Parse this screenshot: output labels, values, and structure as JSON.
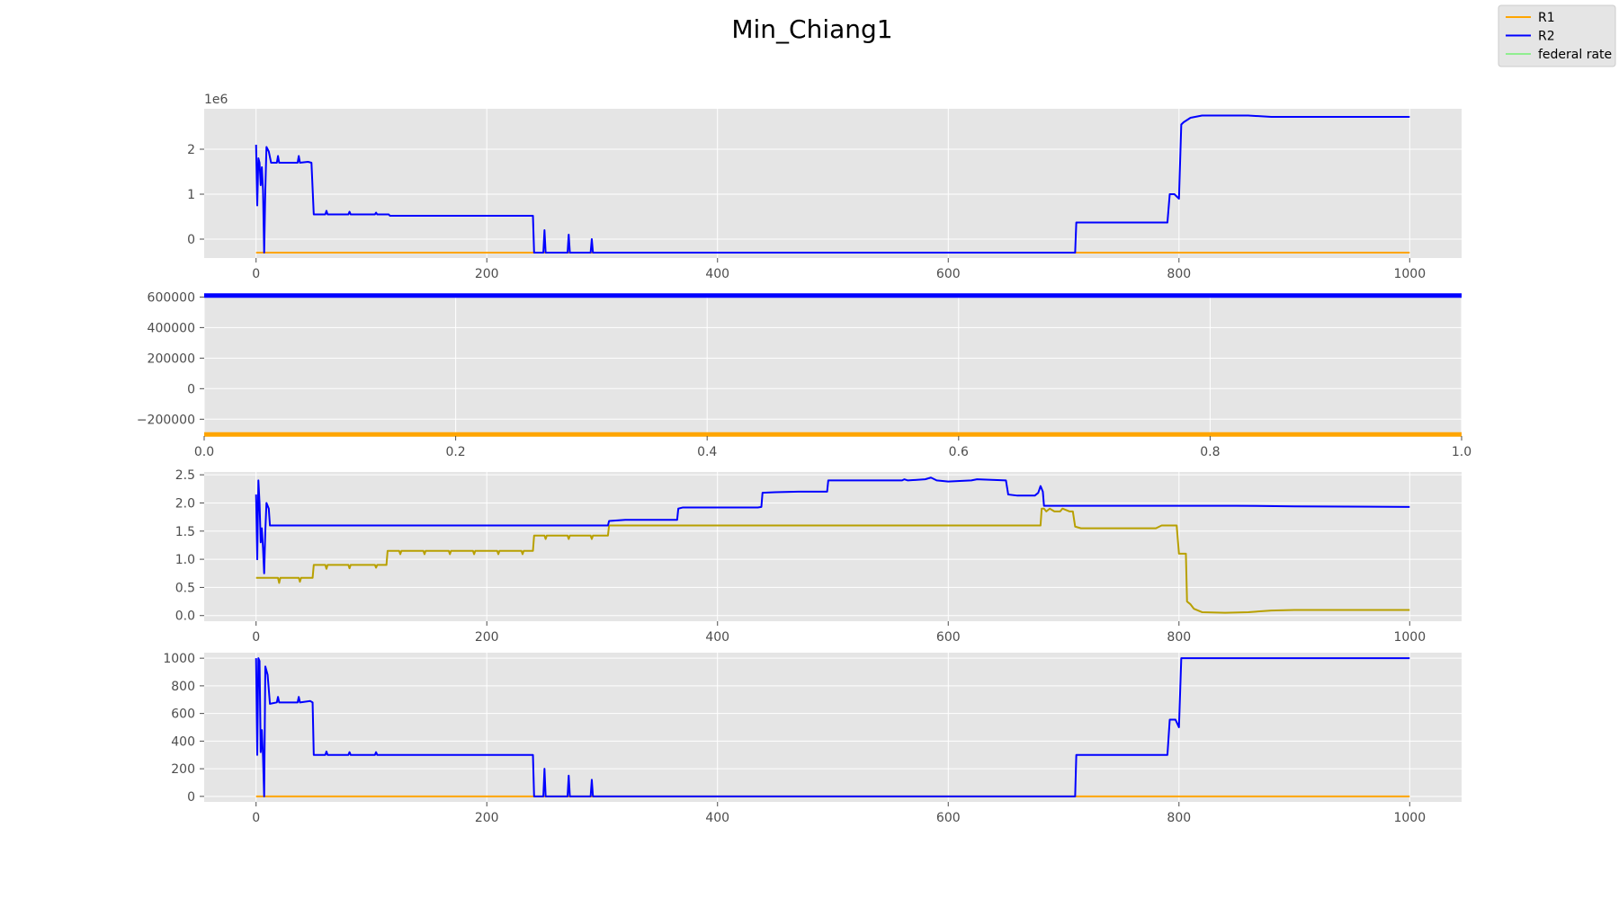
{
  "figure": {
    "title": "Min_Chiang1",
    "background": "#ffffff",
    "panel_bg": "#e5e5e5",
    "grid_color": "#ffffff"
  },
  "legend": {
    "placement": "top-right",
    "entries": [
      {
        "label": "R1",
        "color": "#ffa500"
      },
      {
        "label": "R2",
        "color": "#0000ff"
      },
      {
        "label": "federal rate",
        "color": "#90ee90"
      }
    ]
  },
  "chart_data": [
    {
      "type": "line",
      "offset_text": "1e6",
      "xlim": [
        -45,
        1045
      ],
      "ylim": [
        -0.42,
        2.9
      ],
      "xticks": [
        0,
        200,
        400,
        600,
        800,
        1000
      ],
      "xtick_labels": [
        "0",
        "200",
        "400",
        "600",
        "800",
        "1000"
      ],
      "yticks": [
        0,
        1,
        2
      ],
      "ytick_labels": [
        "0",
        "1",
        "2"
      ],
      "grid": true,
      "series": [
        {
          "name": "R1",
          "color": "#ffa500",
          "width": 2,
          "points": [
            [
              0,
              -0.3
            ],
            [
              1000,
              -0.3
            ]
          ]
        },
        {
          "name": "R2",
          "color": "#0000ff",
          "width": 2,
          "points": [
            [
              0,
              2.1
            ],
            [
              1,
              0.75
            ],
            [
              2,
              1.8
            ],
            [
              3,
              1.7
            ],
            [
              4,
              1.2
            ],
            [
              5,
              1.6
            ],
            [
              6,
              1.1
            ],
            [
              7,
              -0.3
            ],
            [
              8,
              1.1
            ],
            [
              9,
              2.05
            ],
            [
              11,
              1.95
            ],
            [
              13,
              1.7
            ],
            [
              18,
              1.7
            ],
            [
              19,
              1.85
            ],
            [
              20,
              1.7
            ],
            [
              36,
              1.7
            ],
            [
              37,
              1.85
            ],
            [
              38,
              1.7
            ],
            [
              45,
              1.72
            ],
            [
              48,
              1.7
            ],
            [
              50,
              0.55
            ],
            [
              60,
              0.55
            ],
            [
              61,
              0.63
            ],
            [
              62,
              0.55
            ],
            [
              80,
              0.55
            ],
            [
              81,
              0.61
            ],
            [
              82,
              0.55
            ],
            [
              103,
              0.55
            ],
            [
              104,
              0.59
            ],
            [
              105,
              0.55
            ],
            [
              115,
              0.55
            ],
            [
              116,
              0.52
            ],
            [
              240,
              0.52
            ],
            [
              241,
              -0.3
            ],
            [
              249,
              -0.3
            ],
            [
              250,
              0.2
            ],
            [
              251,
              -0.3
            ],
            [
              270,
              -0.3
            ],
            [
              271,
              0.1
            ],
            [
              272,
              -0.3
            ],
            [
              290,
              -0.3
            ],
            [
              291,
              0.0
            ],
            [
              292,
              -0.3
            ],
            [
              710,
              -0.3
            ],
            [
              711,
              0.37
            ],
            [
              790,
              0.37
            ],
            [
              792,
              1.0
            ],
            [
              796,
              1.0
            ],
            [
              800,
              0.9
            ],
            [
              802,
              2.55
            ],
            [
              804,
              2.6
            ],
            [
              810,
              2.7
            ],
            [
              820,
              2.75
            ],
            [
              860,
              2.75
            ],
            [
              880,
              2.72
            ],
            [
              950,
              2.72
            ],
            [
              1000,
              2.72
            ]
          ]
        }
      ]
    },
    {
      "type": "line",
      "offset_text": "",
      "xlim": [
        0,
        1
      ],
      "ylim": [
        -310000,
        620000
      ],
      "xticks": [
        0,
        0.2,
        0.4,
        0.6,
        0.8,
        1.0
      ],
      "xtick_labels": [
        "0.0",
        "0.2",
        "0.4",
        "0.6",
        "0.8",
        "1.0"
      ],
      "yticks": [
        -200000,
        0,
        200000,
        400000,
        600000
      ],
      "ytick_labels": [
        "−200000",
        "0",
        "200000",
        "400000",
        "600000"
      ],
      "grid": true,
      "series": [
        {
          "name": "R1",
          "color": "#ffa500",
          "width": 5,
          "points": [
            [
              0,
              -300000
            ],
            [
              1,
              -300000
            ]
          ]
        },
        {
          "name": "R2",
          "color": "#0000ff",
          "width": 5,
          "points": [
            [
              0,
              610000
            ],
            [
              1,
              610000
            ]
          ]
        }
      ]
    },
    {
      "type": "line",
      "offset_text": "",
      "xlim": [
        -45,
        1045
      ],
      "ylim": [
        -0.1,
        2.55
      ],
      "xticks": [
        0,
        200,
        400,
        600,
        800,
        1000
      ],
      "xtick_labels": [
        "0",
        "200",
        "400",
        "600",
        "800",
        "1000"
      ],
      "yticks": [
        0,
        0.5,
        1.0,
        1.5,
        2.0,
        2.5
      ],
      "ytick_labels": [
        "0.0",
        "0.5",
        "1.0",
        "1.5",
        "2.0",
        "2.5"
      ],
      "grid": true,
      "series": [
        {
          "name": "R1",
          "color": "#b8a000",
          "width": 2,
          "points": [
            [
              0,
              0.67
            ],
            [
              19,
              0.67
            ],
            [
              20,
              0.58
            ],
            [
              21,
              0.67
            ],
            [
              37,
              0.67
            ],
            [
              38,
              0.6
            ],
            [
              39,
              0.67
            ],
            [
              49,
              0.67
            ],
            [
              50,
              0.9
            ],
            [
              60,
              0.9
            ],
            [
              61,
              0.83
            ],
            [
              62,
              0.9
            ],
            [
              80,
              0.9
            ],
            [
              81,
              0.84
            ],
            [
              82,
              0.9
            ],
            [
              103,
              0.9
            ],
            [
              104,
              0.85
            ],
            [
              105,
              0.9
            ],
            [
              113,
              0.9
            ],
            [
              114,
              1.15
            ],
            [
              124,
              1.15
            ],
            [
              125,
              1.09
            ],
            [
              126,
              1.15
            ],
            [
              145,
              1.15
            ],
            [
              146,
              1.09
            ],
            [
              147,
              1.15
            ],
            [
              167,
              1.15
            ],
            [
              168,
              1.09
            ],
            [
              169,
              1.15
            ],
            [
              188,
              1.15
            ],
            [
              189,
              1.09
            ],
            [
              190,
              1.15
            ],
            [
              209,
              1.15
            ],
            [
              210,
              1.09
            ],
            [
              211,
              1.15
            ],
            [
              230,
              1.15
            ],
            [
              231,
              1.09
            ],
            [
              232,
              1.15
            ],
            [
              240,
              1.15
            ],
            [
              241,
              1.42
            ],
            [
              250,
              1.42
            ],
            [
              251,
              1.36
            ],
            [
              252,
              1.42
            ],
            [
              270,
              1.42
            ],
            [
              271,
              1.36
            ],
            [
              272,
              1.42
            ],
            [
              290,
              1.42
            ],
            [
              291,
              1.36
            ],
            [
              292,
              1.42
            ],
            [
              305,
              1.42
            ],
            [
              306,
              1.6
            ],
            [
              680,
              1.6
            ],
            [
              681,
              1.9
            ],
            [
              683,
              1.9
            ],
            [
              685,
              1.85
            ],
            [
              688,
              1.9
            ],
            [
              692,
              1.85
            ],
            [
              697,
              1.85
            ],
            [
              699,
              1.9
            ],
            [
              705,
              1.85
            ],
            [
              708,
              1.85
            ],
            [
              710,
              1.58
            ],
            [
              715,
              1.55
            ],
            [
              770,
              1.55
            ],
            [
              780,
              1.55
            ],
            [
              785,
              1.6
            ],
            [
              798,
              1.6
            ],
            [
              800,
              1.1
            ],
            [
              806,
              1.1
            ],
            [
              807,
              0.25
            ],
            [
              810,
              0.2
            ],
            [
              813,
              0.12
            ],
            [
              820,
              0.06
            ],
            [
              840,
              0.05
            ],
            [
              860,
              0.06
            ],
            [
              880,
              0.09
            ],
            [
              900,
              0.1
            ],
            [
              950,
              0.1
            ],
            [
              1000,
              0.1
            ]
          ]
        },
        {
          "name": "R2",
          "color": "#0000ff",
          "width": 2,
          "points": [
            [
              0,
              2.15
            ],
            [
              1,
              1.0
            ],
            [
              2,
              2.4
            ],
            [
              3,
              2.0
            ],
            [
              4,
              1.3
            ],
            [
              5,
              1.55
            ],
            [
              6,
              1.2
            ],
            [
              7,
              0.75
            ],
            [
              8,
              1.5
            ],
            [
              9,
              2.0
            ],
            [
              11,
              1.9
            ],
            [
              12,
              1.6
            ],
            [
              305,
              1.6
            ],
            [
              306,
              1.68
            ],
            [
              320,
              1.7
            ],
            [
              365,
              1.7
            ],
            [
              366,
              1.9
            ],
            [
              370,
              1.92
            ],
            [
              435,
              1.92
            ],
            [
              438,
              1.93
            ],
            [
              439,
              2.18
            ],
            [
              450,
              2.19
            ],
            [
              470,
              2.2
            ],
            [
              495,
              2.2
            ],
            [
              496,
              2.4
            ],
            [
              560,
              2.4
            ],
            [
              562,
              2.42
            ],
            [
              565,
              2.4
            ],
            [
              580,
              2.42
            ],
            [
              585,
              2.45
            ],
            [
              590,
              2.4
            ],
            [
              600,
              2.38
            ],
            [
              620,
              2.4
            ],
            [
              625,
              2.42
            ],
            [
              650,
              2.4
            ],
            [
              652,
              2.15
            ],
            [
              660,
              2.13
            ],
            [
              675,
              2.13
            ],
            [
              678,
              2.18
            ],
            [
              680,
              2.3
            ],
            [
              682,
              2.2
            ],
            [
              683,
              1.95
            ],
            [
              800,
              1.95
            ],
            [
              850,
              1.95
            ],
            [
              900,
              1.94
            ],
            [
              1000,
              1.93
            ]
          ]
        }
      ]
    },
    {
      "type": "line",
      "offset_text": "",
      "xlim": [
        -45,
        1045
      ],
      "ylim": [
        -40,
        1040
      ],
      "xticks": [
        0,
        200,
        400,
        600,
        800,
        1000
      ],
      "xtick_labels": [
        "0",
        "200",
        "400",
        "600",
        "800",
        "1000"
      ],
      "yticks": [
        0,
        200,
        400,
        600,
        800,
        1000
      ],
      "ytick_labels": [
        "0",
        "200",
        "400",
        "600",
        "800",
        "1000"
      ],
      "grid": true,
      "series": [
        {
          "name": "R1",
          "color": "#ffa500",
          "width": 2,
          "points": [
            [
              0,
              0
            ],
            [
              1000,
              0
            ]
          ]
        },
        {
          "name": "R2",
          "color": "#0000ff",
          "width": 2,
          "points": [
            [
              0,
              1000
            ],
            [
              1,
              300
            ],
            [
              2,
              1000
            ],
            [
              3,
              980
            ],
            [
              4,
              320
            ],
            [
              5,
              480
            ],
            [
              6,
              290
            ],
            [
              7,
              0
            ],
            [
              8,
              940
            ],
            [
              10,
              880
            ],
            [
              12,
              670
            ],
            [
              18,
              680
            ],
            [
              19,
              720
            ],
            [
              20,
              680
            ],
            [
              36,
              680
            ],
            [
              37,
              720
            ],
            [
              38,
              680
            ],
            [
              47,
              690
            ],
            [
              49,
              680
            ],
            [
              50,
              300
            ],
            [
              60,
              300
            ],
            [
              61,
              325
            ],
            [
              62,
              300
            ],
            [
              80,
              300
            ],
            [
              81,
              320
            ],
            [
              82,
              300
            ],
            [
              103,
              300
            ],
            [
              104,
              320
            ],
            [
              105,
              300
            ],
            [
              240,
              300
            ],
            [
              241,
              0
            ],
            [
              249,
              0
            ],
            [
              250,
              200
            ],
            [
              251,
              0
            ],
            [
              270,
              0
            ],
            [
              271,
              150
            ],
            [
              272,
              0
            ],
            [
              290,
              0
            ],
            [
              291,
              120
            ],
            [
              292,
              0
            ],
            [
              710,
              0
            ],
            [
              711,
              300
            ],
            [
              790,
              300
            ],
            [
              792,
              555
            ],
            [
              797,
              555
            ],
            [
              800,
              500
            ],
            [
              802,
              1000
            ],
            [
              1000,
              1000
            ]
          ]
        }
      ]
    }
  ]
}
